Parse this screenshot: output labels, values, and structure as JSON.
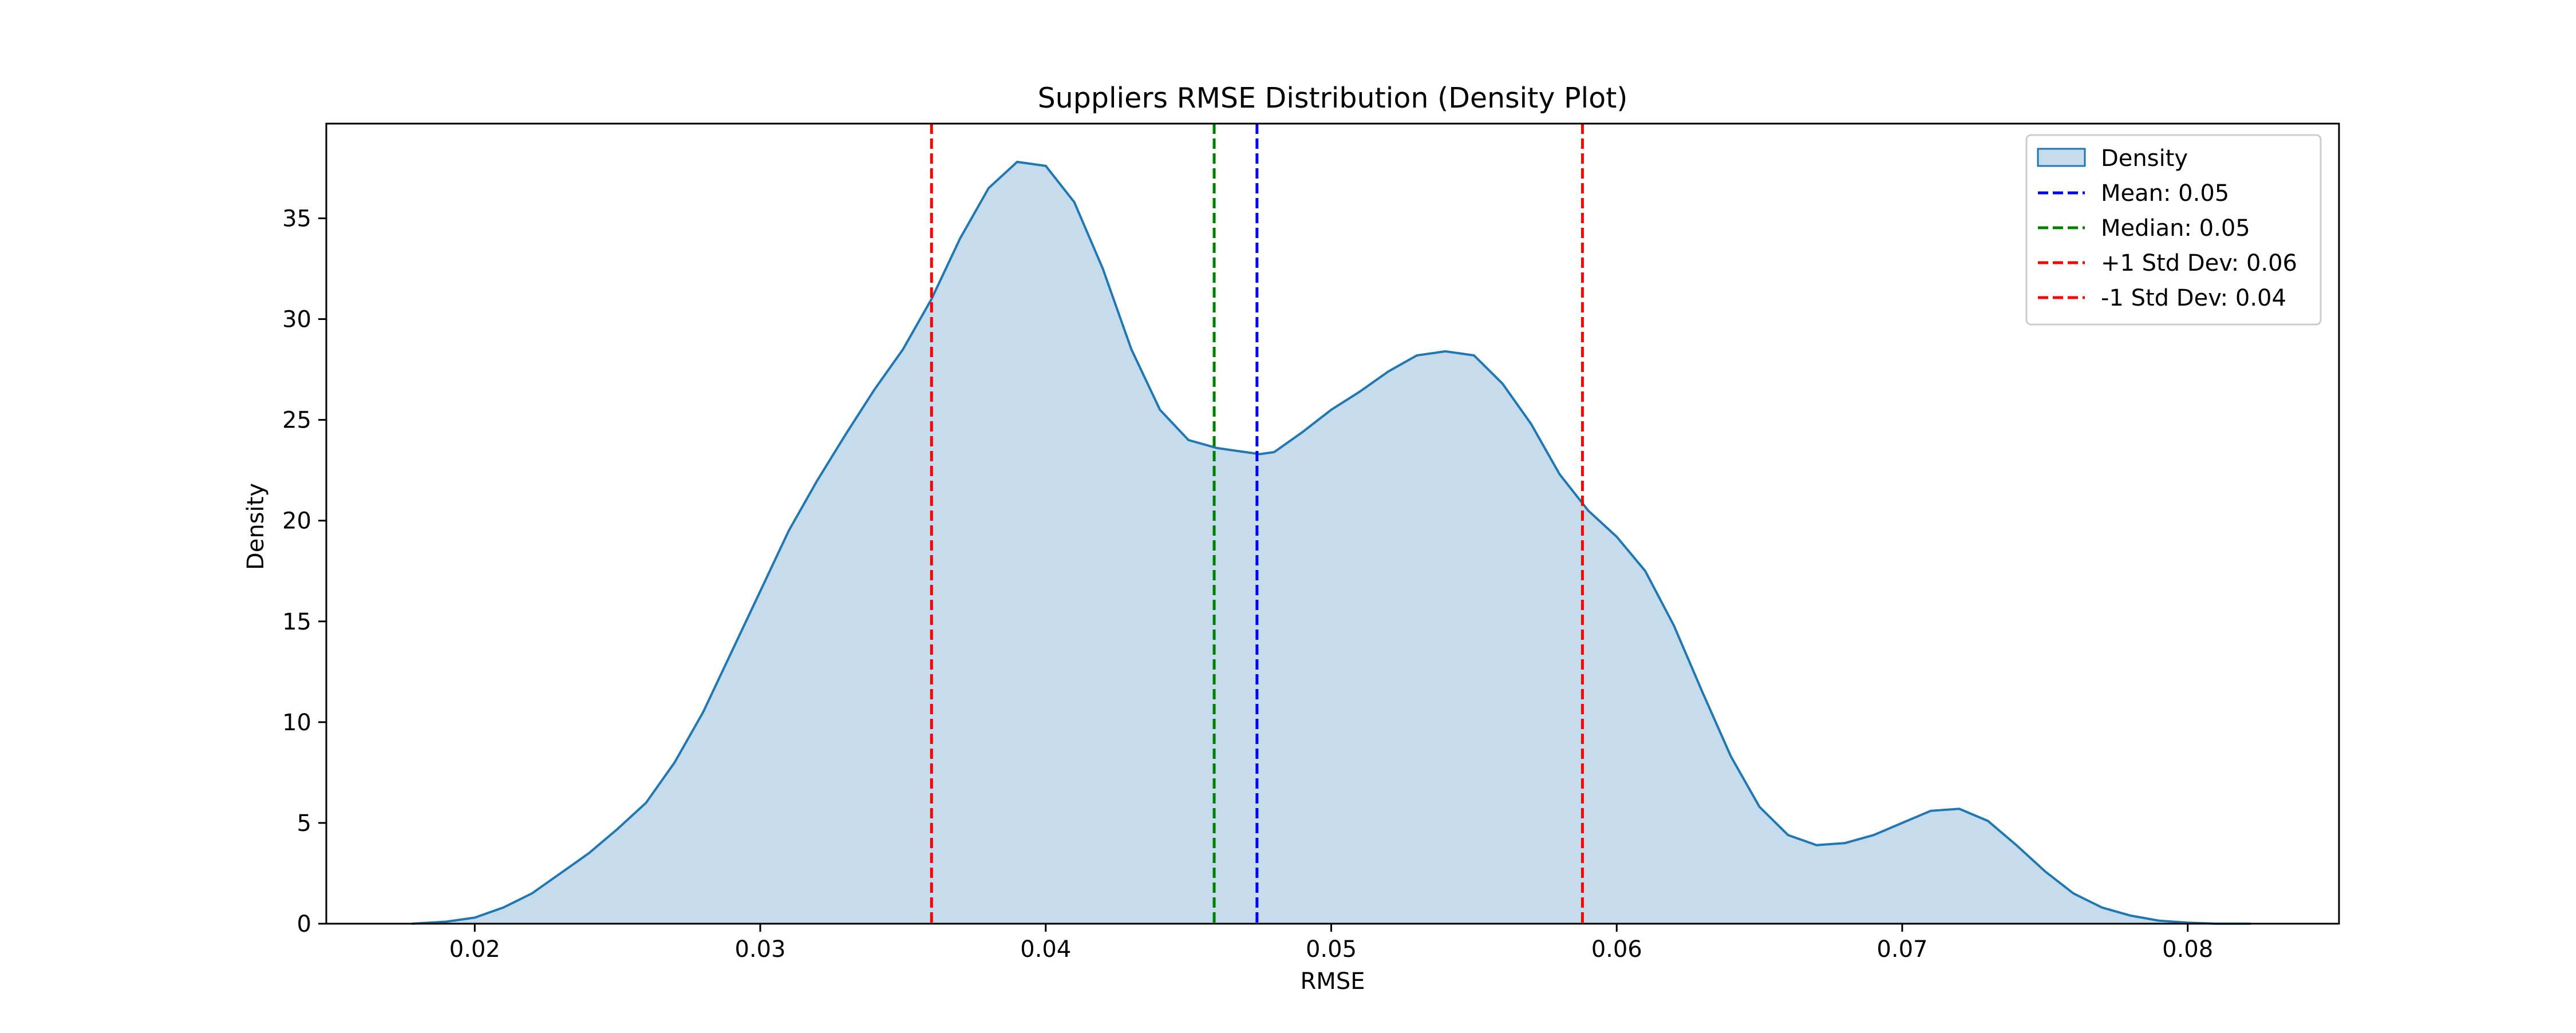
{
  "chart_data": {
    "type": "area",
    "title": "Suppliers RMSE Distribution (Density Plot)",
    "xlabel": "RMSE",
    "ylabel": "Density",
    "xlim": [
      0.0148,
      0.0853
    ],
    "ylim": [
      0,
      39.7
    ],
    "xticks": [
      0.02,
      0.03,
      0.04,
      0.05,
      0.06,
      0.07,
      0.08
    ],
    "xtick_labels": [
      "0.02",
      "0.03",
      "0.04",
      "0.05",
      "0.06",
      "0.07",
      "0.08"
    ],
    "yticks": [
      0,
      5,
      10,
      15,
      20,
      25,
      30,
      35
    ],
    "ytick_labels": [
      "0",
      "5",
      "10",
      "15",
      "20",
      "25",
      "30",
      "35"
    ],
    "grid": false,
    "legend_position": "top-right",
    "series": [
      {
        "name": "Density",
        "color": "#1f77b4",
        "fill": "#c6dbec",
        "x": [
          0.0178,
          0.019,
          0.02,
          0.021,
          0.022,
          0.023,
          0.024,
          0.025,
          0.026,
          0.027,
          0.028,
          0.029,
          0.03,
          0.031,
          0.032,
          0.033,
          0.034,
          0.035,
          0.036,
          0.037,
          0.038,
          0.039,
          0.04,
          0.041,
          0.042,
          0.043,
          0.044,
          0.045,
          0.046,
          0.047,
          0.0475,
          0.048,
          0.049,
          0.05,
          0.051,
          0.052,
          0.053,
          0.054,
          0.055,
          0.056,
          0.057,
          0.058,
          0.059,
          0.06,
          0.061,
          0.062,
          0.063,
          0.064,
          0.065,
          0.066,
          0.067,
          0.068,
          0.069,
          0.07,
          0.071,
          0.072,
          0.073,
          0.074,
          0.075,
          0.076,
          0.077,
          0.078,
          0.079,
          0.08,
          0.081,
          0.0822
        ],
        "y": [
          0.0,
          0.1,
          0.3,
          0.8,
          1.5,
          2.5,
          3.5,
          4.7,
          6.0,
          8.0,
          10.5,
          13.5,
          16.5,
          19.5,
          22.0,
          24.3,
          26.5,
          28.5,
          31.0,
          34.0,
          36.5,
          37.8,
          37.6,
          35.8,
          32.5,
          28.5,
          25.5,
          24.0,
          23.6,
          23.4,
          23.3,
          23.4,
          24.4,
          25.5,
          26.4,
          27.4,
          28.2,
          28.4,
          28.2,
          26.8,
          24.8,
          22.3,
          20.5,
          19.2,
          17.5,
          14.8,
          11.5,
          8.3,
          5.8,
          4.4,
          3.9,
          4.0,
          4.4,
          5.0,
          5.6,
          5.7,
          5.1,
          3.9,
          2.6,
          1.5,
          0.8,
          0.4,
          0.15,
          0.05,
          0.0,
          0.0
        ]
      }
    ],
    "vlines": [
      {
        "name": "Mean: 0.05",
        "x": 0.0474,
        "color": "#0000ff"
      },
      {
        "name": "Median: 0.05",
        "x": 0.0459,
        "color": "#008000"
      },
      {
        "name": "+1 Std Dev: 0.06",
        "x": 0.0588,
        "color": "#ff0000"
      },
      {
        "name": "-1 Std Dev: 0.04",
        "x": 0.036,
        "color": "#ff0000"
      }
    ]
  }
}
